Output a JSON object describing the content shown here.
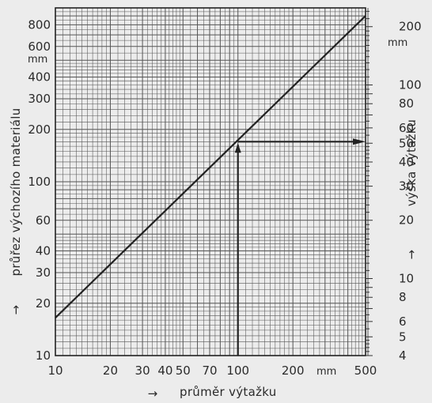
{
  "chart_data": {
    "type": "line",
    "x_scale": "log",
    "y_left_scale": "log",
    "y_right_scale": "log",
    "grid": true,
    "xlim": [
      10,
      500
    ],
    "ylim_left": [
      10,
      1000
    ],
    "ylim_right": [
      4,
      250
    ],
    "xlabel": "průměr výtažku",
    "xlabel_arrow": "→",
    "x_unit": "mm",
    "x_ticks": [
      10,
      20,
      30,
      40,
      50,
      70,
      100,
      200,
      500
    ],
    "ylabel_left": "průřez výchozího materiálu",
    "ylabel_left_arrow": "→",
    "y_left_unit": "mm",
    "y_left_ticks": [
      10,
      20,
      30,
      40,
      60,
      100,
      200,
      300,
      400,
      600,
      800
    ],
    "ylabel_right": "výška výtažku",
    "ylabel_right_arrow": "→",
    "y_right_unit": "mm",
    "y_right_ticks": [
      4,
      5,
      6,
      8,
      10,
      20,
      30,
      40,
      50,
      60,
      80,
      100,
      200
    ],
    "series": [
      {
        "x": [
          10,
          500
        ],
        "y": [
          16.5,
          900
        ]
      }
    ],
    "annotation": {
      "type": "arrow-path",
      "points_left_axis": [
        [
          100,
          10
        ],
        [
          100,
          170
        ],
        [
          500,
          170
        ]
      ],
      "right_axis_reading": 45
    }
  }
}
